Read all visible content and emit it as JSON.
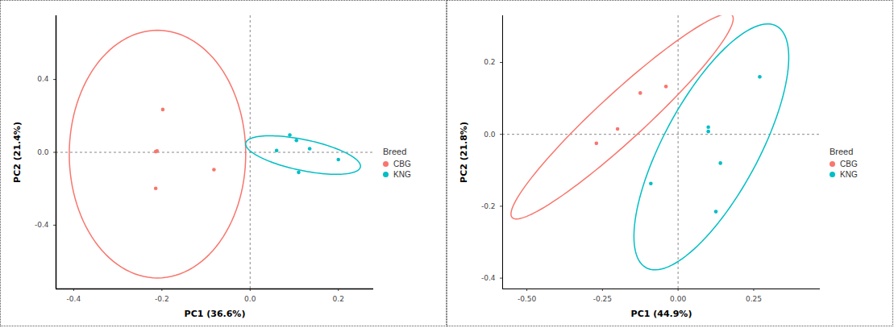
{
  "chart_data": [
    {
      "type": "scatter",
      "xlabel": "PC1 (36.6%)",
      "ylabel": "PC2 (21.4%)",
      "legend_title": "Breed",
      "legend": "right",
      "grid": false,
      "xlim": [
        -0.44,
        0.28
      ],
      "ylim": [
        -0.75,
        0.75
      ],
      "xticks": [
        -0.4,
        -0.2,
        {
          "value": 0,
          "label": "0.0"
        },
        0.2
      ],
      "yticks": [
        -0.4,
        {
          "value": 0,
          "label": "0.0"
        },
        0.4
      ],
      "series": [
        {
          "name": "CBG",
          "color": "#F8766D",
          "x": [
            -0.198,
            -0.214,
            -0.211,
            -0.082,
            -0.214
          ],
          "y": [
            0.235,
            0.004,
            0.008,
            -0.095,
            -0.198
          ],
          "ellipse": {
            "center": [
              -0.21,
              -0.01
            ],
            "radii": [
              0.2,
              0.68
            ],
            "angle": 0
          }
        },
        {
          "name": "KNG",
          "color": "#00BFC4",
          "x": [
            0.09,
            0.105,
            0.06,
            0.135,
            0.2,
            0.11
          ],
          "y": [
            0.095,
            0.065,
            0.01,
            0.02,
            -0.04,
            -0.11
          ],
          "ellipse": {
            "center": [
              0.12,
              -0.015
            ],
            "radii": [
              0.15,
              0.075
            ],
            "angle": -35
          }
        }
      ]
    },
    {
      "type": "scatter",
      "xlabel": "PC1 (44.9%)",
      "ylabel": "PC2 (21.8%)",
      "legend_title": "Breed",
      "legend": "right",
      "grid": false,
      "xlim": [
        -0.58,
        0.47
      ],
      "ylim": [
        -0.43,
        0.33
      ],
      "xticks": [
        {
          "value": -0.5,
          "label": "-0.50"
        },
        {
          "value": -0.25,
          "label": "-0.25"
        },
        {
          "value": 0,
          "label": "0.00"
        },
        {
          "value": 0.25,
          "label": "0.25"
        }
      ],
      "yticks": [
        -0.4,
        -0.2,
        {
          "value": 0,
          "label": "0.0"
        },
        0.2
      ],
      "series": [
        {
          "name": "CBG",
          "color": "#F8766D",
          "x": [
            -0.27,
            -0.2,
            -0.125,
            -0.04
          ],
          "y": [
            -0.025,
            0.015,
            0.115,
            0.133
          ],
          "ellipse": {
            "center": [
              -0.185,
              0.05
            ],
            "radii": [
              0.46,
              0.07
            ],
            "angle": 37.5
          }
        },
        {
          "name": "KNG",
          "color": "#00BFC4",
          "x": [
            -0.09,
            0.1,
            0.1,
            0.14,
            0.125,
            0.27
          ],
          "y": [
            -0.137,
            0.02,
            0.008,
            -0.08,
            -0.215,
            0.16
          ],
          "ellipse": {
            "center": [
              0.11,
              -0.035
            ],
            "radii": [
              0.4,
              0.15
            ],
            "angle": 56
          }
        }
      ]
    }
  ]
}
